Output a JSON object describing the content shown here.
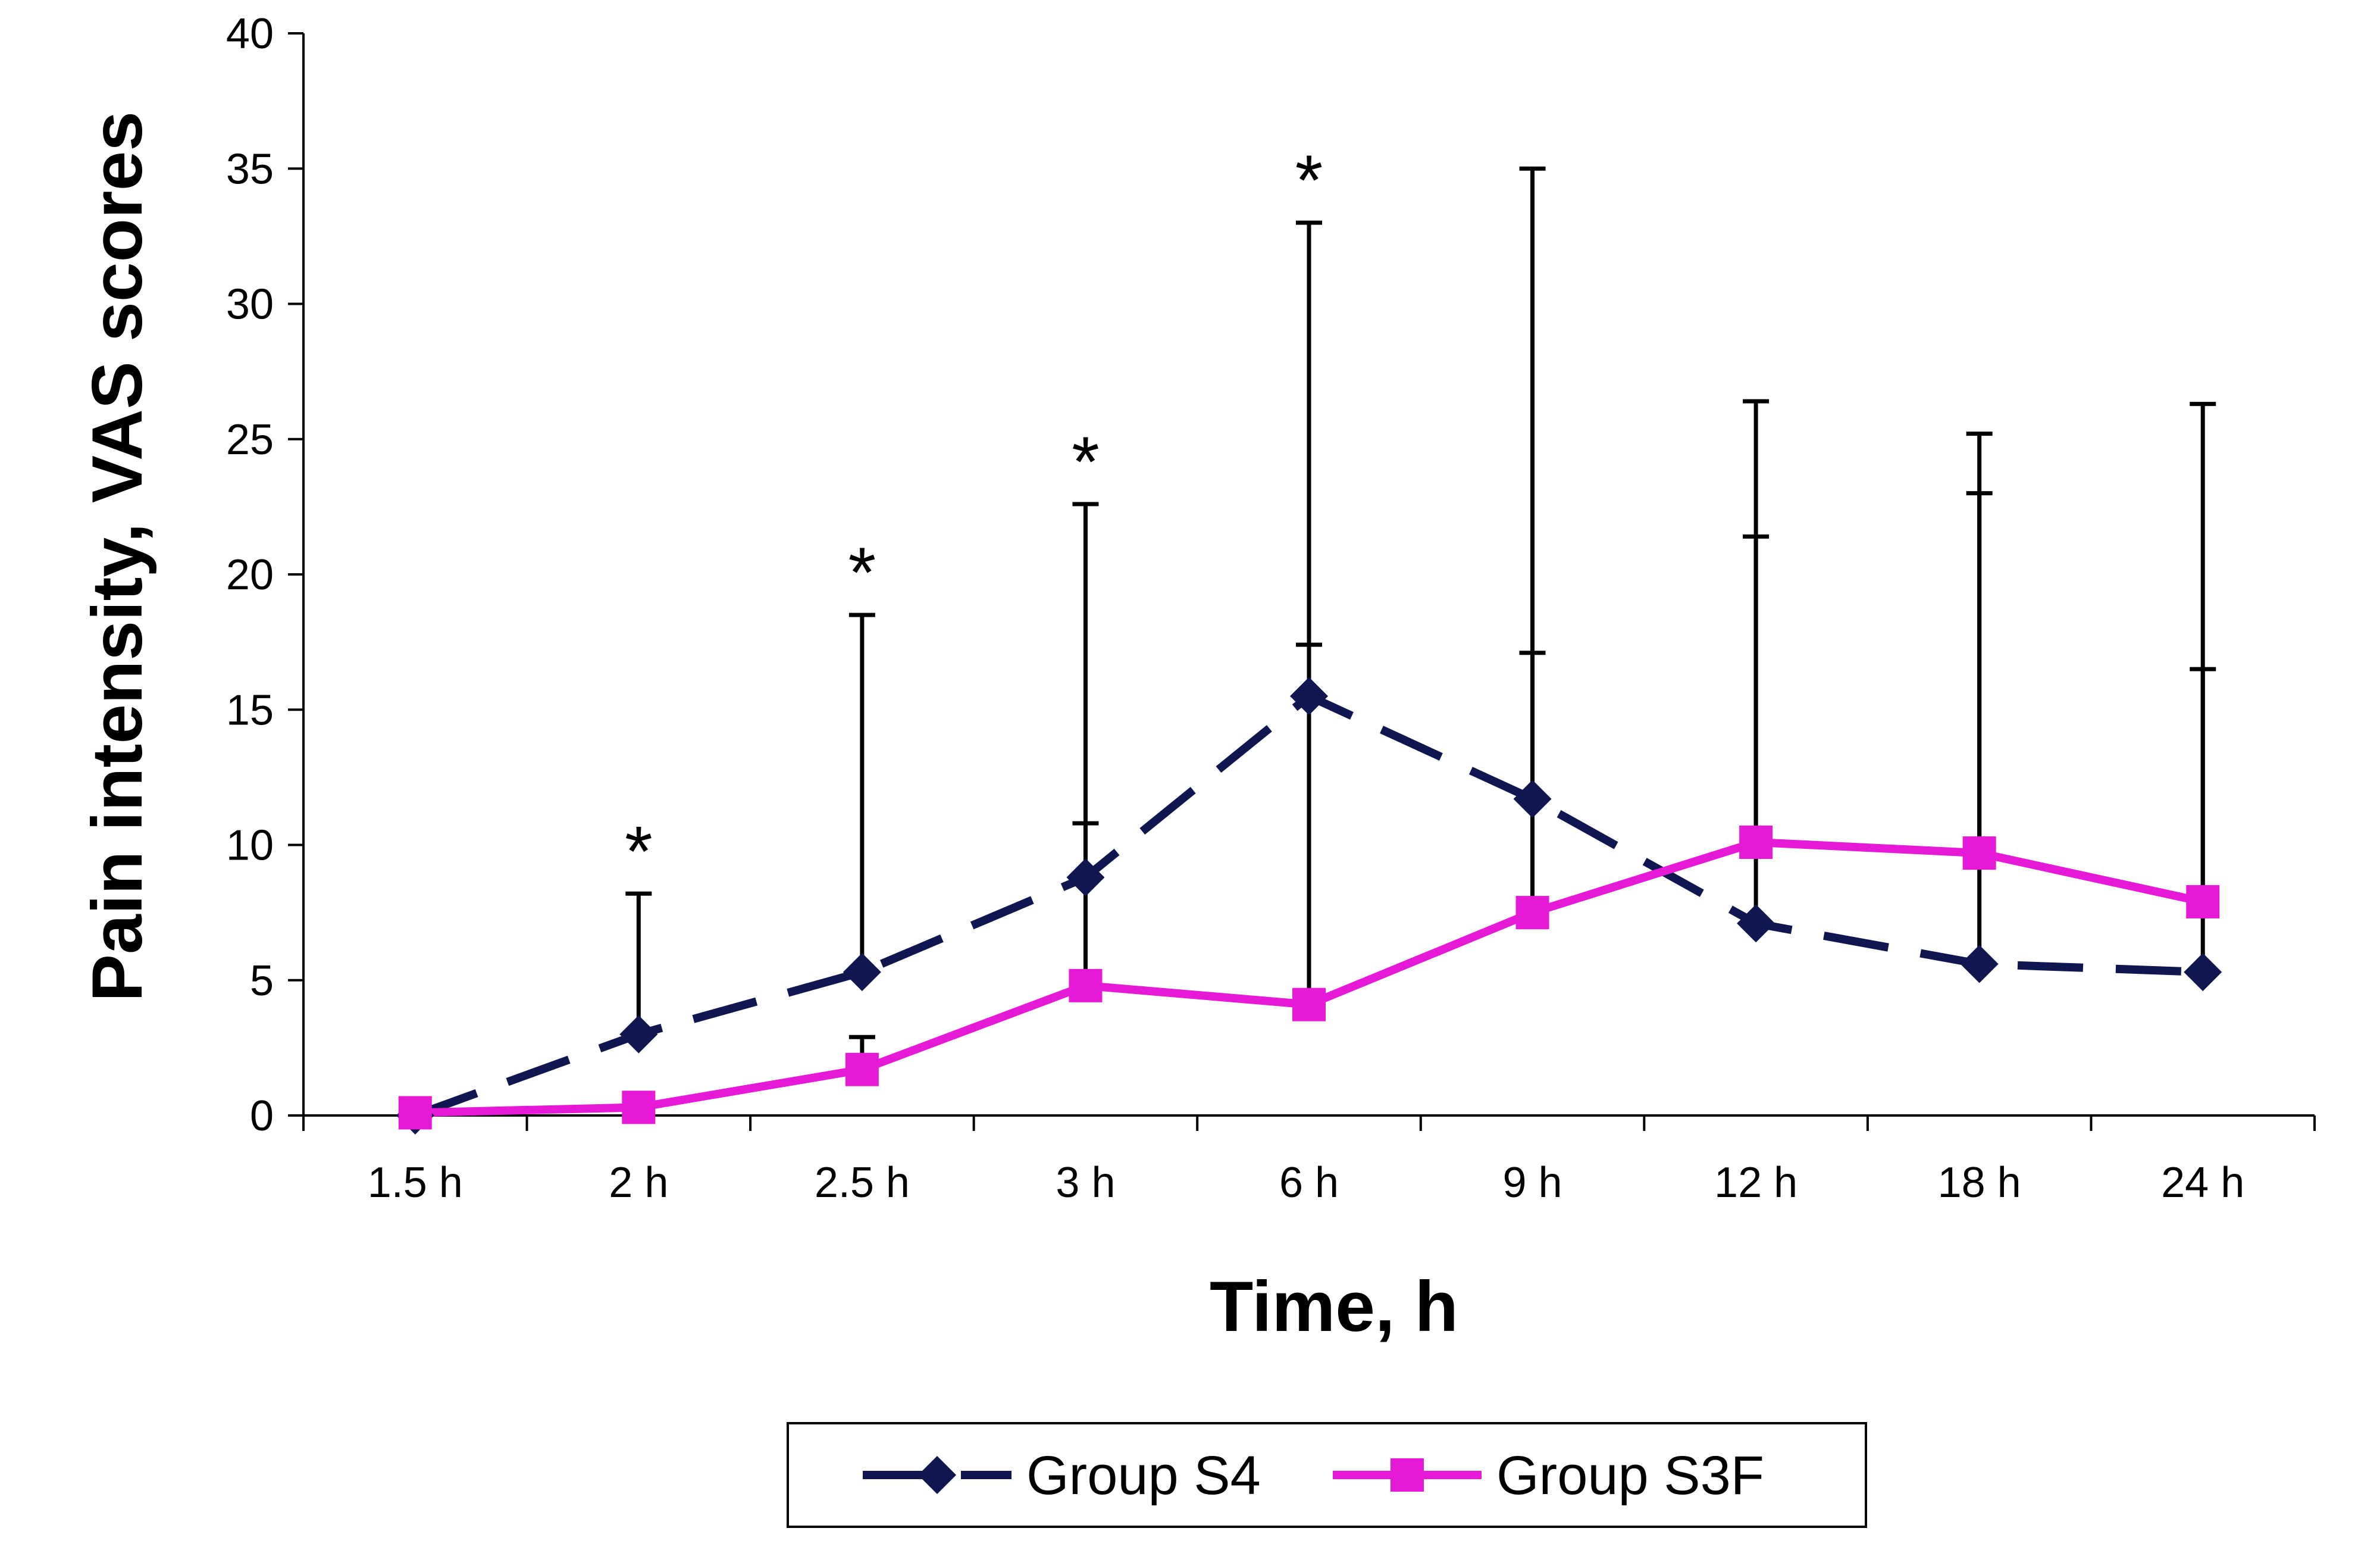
{
  "chart_data": {
    "type": "line",
    "title": "",
    "xlabel": "Time, h",
    "ylabel": "Pain intensity, VAS scores",
    "categories": [
      "1.5 h",
      "2 h",
      "2.5 h",
      "3 h",
      "6 h",
      "9 h",
      "12 h",
      "18 h",
      "24 h"
    ],
    "ylim": [
      0,
      40
    ],
    "yticks": [
      0,
      5,
      10,
      15,
      20,
      25,
      30,
      35,
      40
    ],
    "grid": false,
    "legend_position": "bottom",
    "significance_marker": "*",
    "significant_categories": [
      "2 h",
      "2.5 h",
      "3 h",
      "6 h"
    ],
    "series": [
      {
        "name": "Group S4",
        "color": "#0f1650",
        "line_style": "dashed",
        "marker": "diamond",
        "values": [
          0,
          3.0,
          5.3,
          8.8,
          15.5,
          11.7,
          7.1,
          5.6,
          5.3
        ],
        "error_upper": [
          0,
          8.2,
          18.5,
          22.6,
          33.0,
          35.0,
          26.4,
          25.2,
          26.3
        ]
      },
      {
        "name": "Group S3F",
        "color": "#e619d6",
        "line_style": "solid",
        "marker": "square",
        "values": [
          0.1,
          0.3,
          1.7,
          4.8,
          4.1,
          7.5,
          10.1,
          9.7,
          7.9
        ],
        "error_upper": [
          0.1,
          0.3,
          2.9,
          10.8,
          17.4,
          17.1,
          21.4,
          23.0,
          16.5
        ]
      }
    ]
  }
}
